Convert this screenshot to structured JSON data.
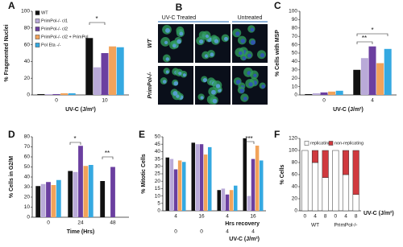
{
  "chart_data": [
    {
      "panel": "A",
      "type": "bar",
      "ylabel": "% Fragmented Nuclei",
      "xlabel": "UV-C (J/m²)",
      "categories": [
        "0",
        "10"
      ],
      "ylim": [
        0,
        100
      ],
      "yticks": [
        0,
        20,
        40,
        60,
        80,
        100
      ],
      "legend": true,
      "series": [
        {
          "name": "WT",
          "color": "#111111",
          "values": [
            1,
            68
          ]
        },
        {
          "name": "PrimPol-/- cl1",
          "color": "#b9aad8",
          "values": [
            1,
            33
          ]
        },
        {
          "name": "PrimPol-/- cl2",
          "color": "#6b3fa0",
          "values": [
            1,
            50
          ]
        },
        {
          "name": "PrimPol-/- cl2 + PrimPol",
          "color": "#f2a35a",
          "values": [
            2,
            58
          ]
        },
        {
          "name": "Pol Eta -/-",
          "color": "#35a9e1",
          "values": [
            2,
            57
          ]
        }
      ],
      "annotations": [
        "*"
      ]
    },
    {
      "panel": "C",
      "type": "bar",
      "ylabel": "% Cells with MSP",
      "xlabel": "UV-C (J/m²)",
      "categories": [
        "0",
        "4"
      ],
      "ylim": [
        0,
        100
      ],
      "yticks": [
        0,
        10,
        20,
        30,
        40,
        50,
        60,
        70,
        80,
        90,
        100
      ],
      "legend": false,
      "series": [
        {
          "name": "WT",
          "color": "#111111",
          "values": [
            1,
            30
          ]
        },
        {
          "name": "PrimPol-/- cl1",
          "color": "#b9aad8",
          "values": [
            2,
            44
          ]
        },
        {
          "name": "PrimPol-/- cl2",
          "color": "#6b3fa0",
          "values": [
            3,
            58
          ]
        },
        {
          "name": "PrimPol-/- cl2 + PrimPol",
          "color": "#f2a35a",
          "values": [
            4,
            38
          ]
        },
        {
          "name": "Pol Eta -/-",
          "color": "#35a9e1",
          "values": [
            5,
            55
          ]
        }
      ],
      "annotations": [
        "**",
        "*"
      ]
    },
    {
      "panel": "D",
      "type": "bar",
      "ylabel": "% Cells in G2/M",
      "xlabel": "Time (Hrs)",
      "categories": [
        "0",
        "24",
        "48"
      ],
      "ylim": [
        0,
        80
      ],
      "yticks": [
        0,
        10,
        20,
        30,
        40,
        50,
        60,
        70,
        80
      ],
      "legend": false,
      "series": [
        {
          "name": "WT",
          "color": "#111111",
          "values": [
            31,
            46,
            36
          ]
        },
        {
          "name": "PrimPol-/- cl1",
          "color": "#b9aad8",
          "values": [
            33,
            45,
            null
          ]
        },
        {
          "name": "PrimPol-/- cl2",
          "color": "#6b3fa0",
          "values": [
            35,
            71,
            50
          ]
        },
        {
          "name": "PrimPol-/- cl2 + PrimPol",
          "color": "#f2a35a",
          "values": [
            32,
            51,
            null
          ]
        },
        {
          "name": "Pol Eta -/-",
          "color": "#35a9e1",
          "values": [
            37,
            52,
            null
          ]
        }
      ],
      "annotations": [
        "*",
        "**"
      ]
    },
    {
      "panel": "E",
      "type": "bar",
      "ylabel": "% Mitotic Cells",
      "xlabel": "Hrs recovery",
      "xlabel2": "UV-C (J/m²)",
      "categories": [
        "4",
        "16",
        "4",
        "16"
      ],
      "categories2": [
        "0",
        "0",
        "4",
        "4"
      ],
      "ylim": [
        0,
        50
      ],
      "yticks": [
        0,
        5,
        10,
        15,
        20,
        25,
        30,
        35,
        40,
        45,
        50
      ],
      "legend": false,
      "series": [
        {
          "name": "WT",
          "color": "#111111",
          "values": [
            36,
            46,
            14,
            49
          ]
        },
        {
          "name": "PrimPol-/- cl1",
          "color": "#b9aad8",
          "values": [
            35,
            45,
            15,
            10
          ]
        },
        {
          "name": "PrimPol-/- cl2",
          "color": "#6b3fa0",
          "values": [
            28,
            45,
            11,
            35
          ]
        },
        {
          "name": "PrimPol-/- cl2 + PrimPol",
          "color": "#f2a35a",
          "values": [
            34,
            38,
            14,
            44
          ]
        },
        {
          "name": "Pol Eta -/-",
          "color": "#35a9e1",
          "values": [
            33,
            43,
            17,
            34
          ]
        }
      ],
      "annotations": [
        "***"
      ]
    },
    {
      "panel": "F",
      "type": "stacked_bar",
      "ylabel": "% Cells",
      "xlabel": "UV-C (J/m²)",
      "categories": [
        "0",
        "4",
        "8",
        "0",
        "4",
        "8"
      ],
      "groups": [
        "WT",
        "PrimPol-/-"
      ],
      "ylim": [
        0,
        120
      ],
      "yticks": [
        0,
        20,
        40,
        60,
        80,
        100,
        120
      ],
      "legend": true,
      "series": [
        {
          "name": "replicating",
          "color": "#ffffff",
          "values": [
            100,
            80,
            55,
            100,
            60,
            27
          ]
        },
        {
          "name": "non-replicating",
          "color": "#d0393e",
          "values": [
            0,
            20,
            45,
            0,
            40,
            73
          ]
        }
      ],
      "annotations": []
    }
  ],
  "image_panel": {
    "panel": "B",
    "columns": [
      "UV-C Treated",
      "Untreated"
    ],
    "rows": [
      "WT",
      "PrimPol-/-"
    ]
  }
}
